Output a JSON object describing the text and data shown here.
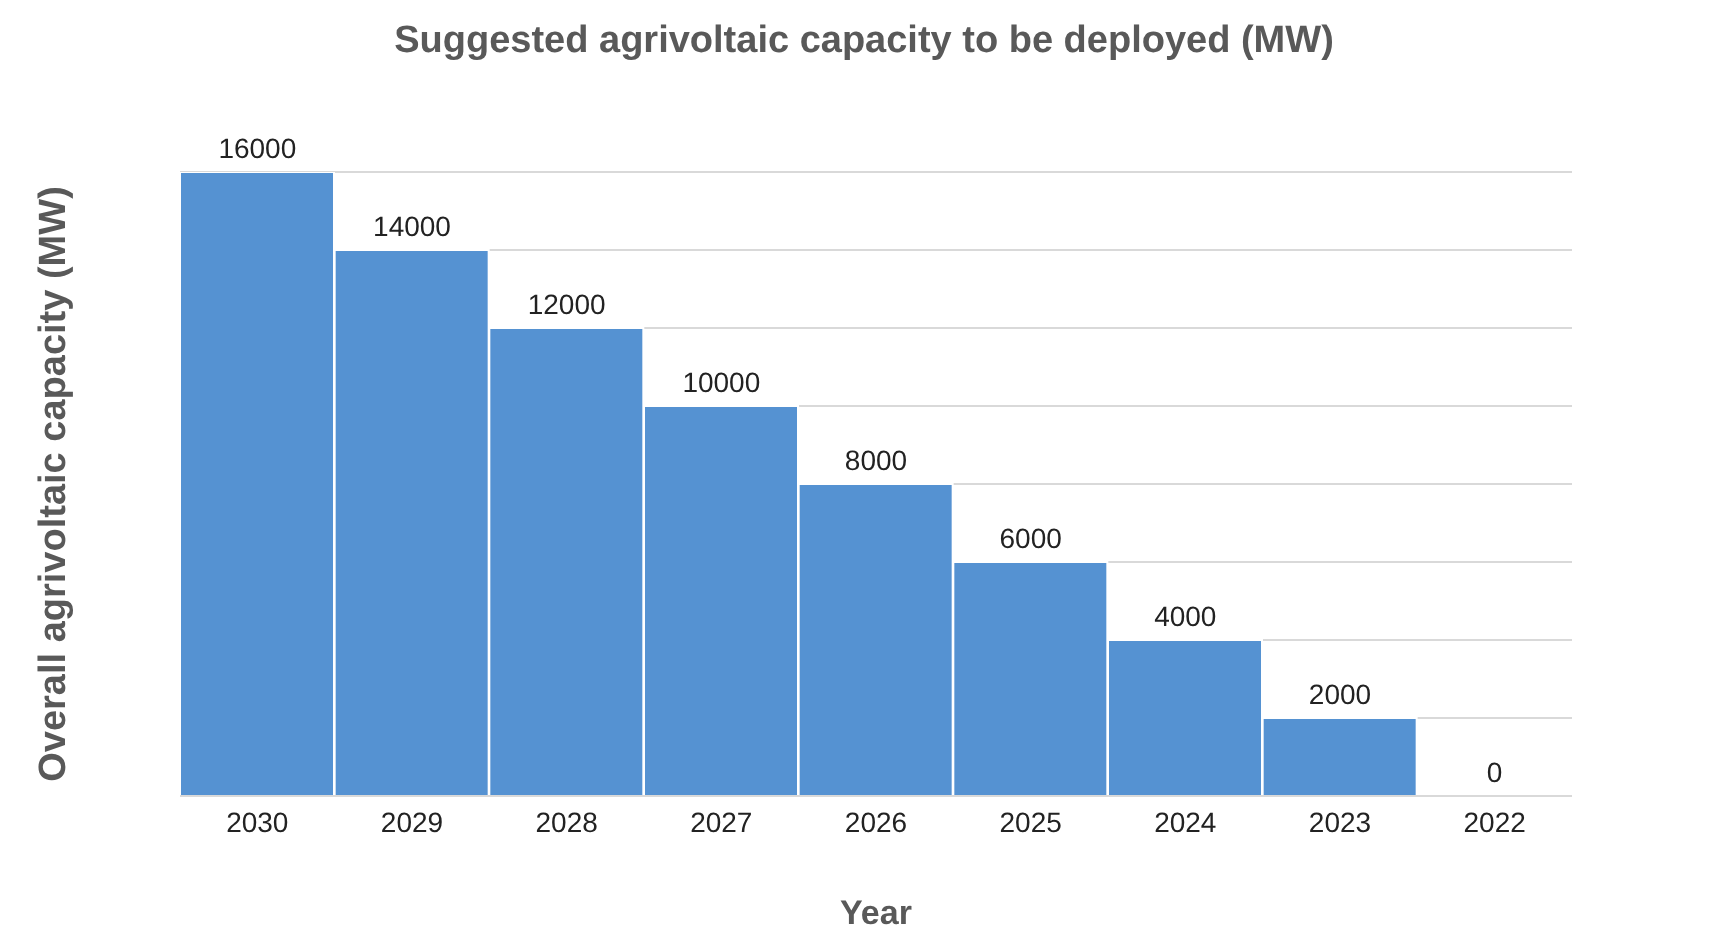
{
  "chart_data": {
    "type": "bar",
    "title": "Suggested agrivoltaic capacity to be deployed (MW)",
    "xlabel": "Year",
    "ylabel": "Overall agrivoltaic capacity (MW)",
    "categories": [
      "2030",
      "2029",
      "2028",
      "2027",
      "2026",
      "2025",
      "2024",
      "2023",
      "2022"
    ],
    "values": [
      16000,
      14000,
      12000,
      10000,
      8000,
      6000,
      4000,
      2000,
      0
    ],
    "color": "#5592d2",
    "ylim": [
      0,
      16000
    ],
    "yticks": [
      {
        "value": 0,
        "label": null
      },
      {
        "value": 2000,
        "label": null
      },
      {
        "value": 4000,
        "label": null
      },
      {
        "value": 6000,
        "label": null
      },
      {
        "value": 8000,
        "label": null
      },
      {
        "value": 10000,
        "label": null
      },
      {
        "value": 12000,
        "label": null
      },
      {
        "value": 14000,
        "label": null
      },
      {
        "value": 16000,
        "label": null
      }
    ],
    "grid": "y",
    "tick_labels": "x",
    "data_labels": true
  }
}
